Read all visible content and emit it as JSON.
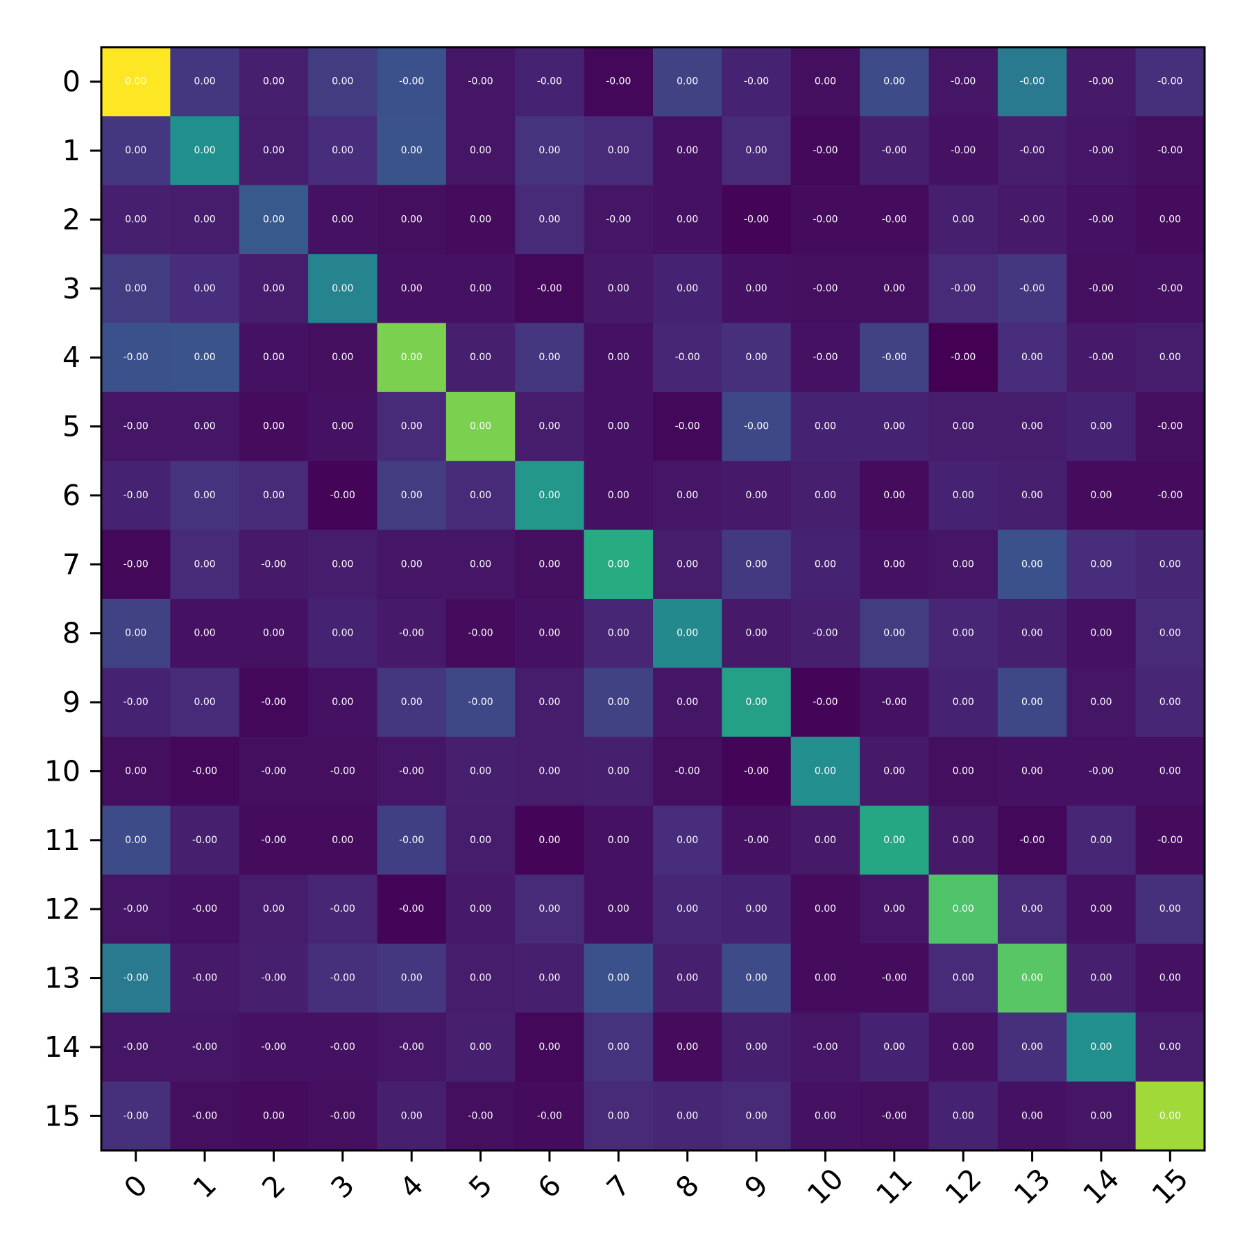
{
  "chart_data": {
    "type": "heatmap",
    "colormap": "viridis",
    "x_categories": [
      "0",
      "1",
      "2",
      "3",
      "4",
      "5",
      "6",
      "7",
      "8",
      "9",
      "10",
      "11",
      "12",
      "13",
      "14",
      "15"
    ],
    "y_categories": [
      "0",
      "1",
      "2",
      "3",
      "4",
      "5",
      "6",
      "7",
      "8",
      "9",
      "10",
      "11",
      "12",
      "13",
      "14",
      "15"
    ],
    "title": "",
    "xlabel": "",
    "ylabel": "",
    "x_tick_rotation": -45,
    "intensity": [
      [
        1.0,
        0.16,
        0.09,
        0.18,
        0.25,
        0.06,
        0.1,
        0.02,
        0.2,
        0.1,
        0.04,
        0.23,
        0.06,
        0.41,
        0.07,
        0.14
      ],
      [
        0.16,
        0.5,
        0.08,
        0.13,
        0.26,
        0.06,
        0.15,
        0.12,
        0.05,
        0.12,
        0.02,
        0.09,
        0.05,
        0.08,
        0.06,
        0.04
      ],
      [
        0.09,
        0.08,
        0.28,
        0.05,
        0.04,
        0.03,
        0.12,
        0.06,
        0.05,
        0.01,
        0.03,
        0.03,
        0.09,
        0.07,
        0.05,
        0.03
      ],
      [
        0.18,
        0.13,
        0.08,
        0.45,
        0.05,
        0.05,
        0.02,
        0.07,
        0.1,
        0.05,
        0.04,
        0.04,
        0.12,
        0.16,
        0.04,
        0.05
      ],
      [
        0.25,
        0.26,
        0.05,
        0.04,
        0.8,
        0.09,
        0.16,
        0.05,
        0.11,
        0.14,
        0.05,
        0.2,
        0.0,
        0.13,
        0.07,
        0.08
      ],
      [
        0.06,
        0.06,
        0.03,
        0.05,
        0.12,
        0.8,
        0.08,
        0.05,
        0.02,
        0.22,
        0.1,
        0.1,
        0.08,
        0.08,
        0.1,
        0.04
      ],
      [
        0.1,
        0.15,
        0.12,
        0.01,
        0.18,
        0.12,
        0.53,
        0.05,
        0.06,
        0.07,
        0.09,
        0.03,
        0.1,
        0.09,
        0.03,
        0.03
      ],
      [
        0.02,
        0.12,
        0.07,
        0.08,
        0.06,
        0.06,
        0.04,
        0.62,
        0.08,
        0.17,
        0.1,
        0.05,
        0.06,
        0.25,
        0.13,
        0.11
      ],
      [
        0.2,
        0.05,
        0.05,
        0.1,
        0.07,
        0.03,
        0.05,
        0.11,
        0.47,
        0.07,
        0.09,
        0.18,
        0.11,
        0.09,
        0.05,
        0.12
      ],
      [
        0.1,
        0.12,
        0.02,
        0.05,
        0.16,
        0.22,
        0.08,
        0.2,
        0.06,
        0.57,
        0.01,
        0.05,
        0.1,
        0.22,
        0.06,
        0.11
      ],
      [
        0.04,
        0.02,
        0.04,
        0.04,
        0.06,
        0.09,
        0.08,
        0.09,
        0.04,
        0.01,
        0.49,
        0.07,
        0.04,
        0.05,
        0.05,
        0.05
      ],
      [
        0.23,
        0.09,
        0.03,
        0.03,
        0.19,
        0.08,
        0.01,
        0.05,
        0.13,
        0.05,
        0.07,
        0.6,
        0.07,
        0.02,
        0.11,
        0.03
      ],
      [
        0.06,
        0.05,
        0.08,
        0.11,
        0.01,
        0.07,
        0.12,
        0.05,
        0.11,
        0.1,
        0.03,
        0.06,
        0.72,
        0.12,
        0.05,
        0.14
      ],
      [
        0.41,
        0.07,
        0.09,
        0.14,
        0.16,
        0.08,
        0.09,
        0.25,
        0.09,
        0.23,
        0.03,
        0.03,
        0.12,
        0.74,
        0.09,
        0.05
      ],
      [
        0.06,
        0.06,
        0.05,
        0.05,
        0.06,
        0.09,
        0.02,
        0.15,
        0.03,
        0.09,
        0.06,
        0.1,
        0.05,
        0.14,
        0.5,
        0.08
      ],
      [
        0.14,
        0.04,
        0.03,
        0.04,
        0.09,
        0.04,
        0.03,
        0.12,
        0.11,
        0.12,
        0.05,
        0.04,
        0.1,
        0.05,
        0.06,
        0.86
      ]
    ],
    "value_labels": [
      [
        "0.00",
        "0.00",
        "0.00",
        "0.00",
        "-0.00",
        "-0.00",
        "-0.00",
        "-0.00",
        "0.00",
        "-0.00",
        "0.00",
        "0.00",
        "-0.00",
        "-0.00",
        "-0.00",
        "-0.00"
      ],
      [
        "0.00",
        "0.00",
        "0.00",
        "0.00",
        "0.00",
        "0.00",
        "0.00",
        "0.00",
        "0.00",
        "0.00",
        "-0.00",
        "-0.00",
        "-0.00",
        "-0.00",
        "-0.00",
        "-0.00"
      ],
      [
        "0.00",
        "0.00",
        "0.00",
        "0.00",
        "0.00",
        "0.00",
        "0.00",
        "-0.00",
        "0.00",
        "-0.00",
        "-0.00",
        "-0.00",
        "0.00",
        "-0.00",
        "-0.00",
        "0.00"
      ],
      [
        "0.00",
        "0.00",
        "0.00",
        "0.00",
        "0.00",
        "0.00",
        "-0.00",
        "0.00",
        "0.00",
        "0.00",
        "-0.00",
        "0.00",
        "-0.00",
        "-0.00",
        "-0.00",
        "-0.00"
      ],
      [
        "-0.00",
        "0.00",
        "0.00",
        "0.00",
        "0.00",
        "0.00",
        "0.00",
        "0.00",
        "-0.00",
        "0.00",
        "-0.00",
        "-0.00",
        "-0.00",
        "0.00",
        "-0.00",
        "0.00"
      ],
      [
        "-0.00",
        "0.00",
        "0.00",
        "0.00",
        "0.00",
        "0.00",
        "0.00",
        "0.00",
        "-0.00",
        "-0.00",
        "0.00",
        "0.00",
        "0.00",
        "0.00",
        "0.00",
        "-0.00"
      ],
      [
        "-0.00",
        "0.00",
        "0.00",
        "-0.00",
        "0.00",
        "0.00",
        "0.00",
        "0.00",
        "0.00",
        "0.00",
        "0.00",
        "0.00",
        "0.00",
        "0.00",
        "0.00",
        "-0.00"
      ],
      [
        "-0.00",
        "0.00",
        "-0.00",
        "0.00",
        "0.00",
        "0.00",
        "0.00",
        "0.00",
        "0.00",
        "0.00",
        "0.00",
        "0.00",
        "0.00",
        "0.00",
        "0.00",
        "0.00"
      ],
      [
        "0.00",
        "0.00",
        "0.00",
        "0.00",
        "-0.00",
        "-0.00",
        "0.00",
        "0.00",
        "0.00",
        "0.00",
        "-0.00",
        "0.00",
        "0.00",
        "0.00",
        "0.00",
        "0.00"
      ],
      [
        "-0.00",
        "0.00",
        "-0.00",
        "0.00",
        "0.00",
        "-0.00",
        "0.00",
        "0.00",
        "0.00",
        "0.00",
        "-0.00",
        "-0.00",
        "0.00",
        "0.00",
        "0.00",
        "0.00"
      ],
      [
        "0.00",
        "-0.00",
        "-0.00",
        "-0.00",
        "-0.00",
        "0.00",
        "0.00",
        "0.00",
        "-0.00",
        "-0.00",
        "0.00",
        "0.00",
        "0.00",
        "0.00",
        "-0.00",
        "0.00"
      ],
      [
        "0.00",
        "-0.00",
        "-0.00",
        "0.00",
        "-0.00",
        "0.00",
        "0.00",
        "0.00",
        "0.00",
        "-0.00",
        "0.00",
        "0.00",
        "0.00",
        "-0.00",
        "0.00",
        "-0.00"
      ],
      [
        "-0.00",
        "-0.00",
        "0.00",
        "-0.00",
        "-0.00",
        "0.00",
        "0.00",
        "0.00",
        "0.00",
        "0.00",
        "0.00",
        "0.00",
        "0.00",
        "0.00",
        "0.00",
        "0.00"
      ],
      [
        "-0.00",
        "-0.00",
        "-0.00",
        "-0.00",
        "0.00",
        "0.00",
        "0.00",
        "0.00",
        "0.00",
        "0.00",
        "0.00",
        "-0.00",
        "0.00",
        "0.00",
        "0.00",
        "0.00"
      ],
      [
        "-0.00",
        "-0.00",
        "-0.00",
        "-0.00",
        "-0.00",
        "0.00",
        "0.00",
        "0.00",
        "0.00",
        "0.00",
        "-0.00",
        "0.00",
        "0.00",
        "0.00",
        "0.00",
        "0.00"
      ],
      [
        "-0.00",
        "-0.00",
        "0.00",
        "-0.00",
        "0.00",
        "-0.00",
        "-0.00",
        "0.00",
        "0.00",
        "0.00",
        "0.00",
        "-0.00",
        "0.00",
        "0.00",
        "0.00",
        "0.00"
      ]
    ]
  }
}
